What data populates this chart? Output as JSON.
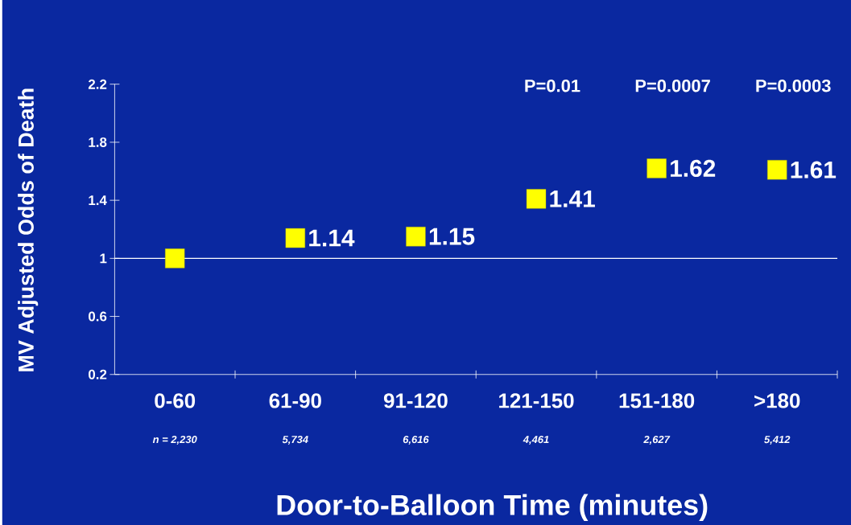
{
  "chart_data": {
    "type": "scatter",
    "xlabel": "Door-to-Balloon Time (minutes)",
    "ylabel": "MV Adjusted Odds of Death",
    "categories": [
      "0-60",
      "61-90",
      "91-120",
      "121-150",
      "151-180",
      ">180"
    ],
    "values": [
      1,
      1.14,
      1.15,
      1.41,
      1.62,
      1.61
    ],
    "value_labels": [
      null,
      "1.14",
      "1.15",
      "1.41",
      "1.62",
      "1.61"
    ],
    "color": "#ffff00",
    "marker": "square",
    "ylim": [
      0.2,
      2.2
    ],
    "yticks": [
      0.2,
      0.6,
      1,
      1.4,
      1.8,
      2.2
    ],
    "ref_lines": [
      {
        "axis": "y",
        "value": 1,
        "color": "#ffffff"
      }
    ],
    "annotations": [
      "P=0.01",
      "P=0.0007",
      "P=0.0003",
      "n = 2,230",
      "5,734",
      "6,616",
      "4,461",
      "2,627",
      "5,412"
    ]
  }
}
